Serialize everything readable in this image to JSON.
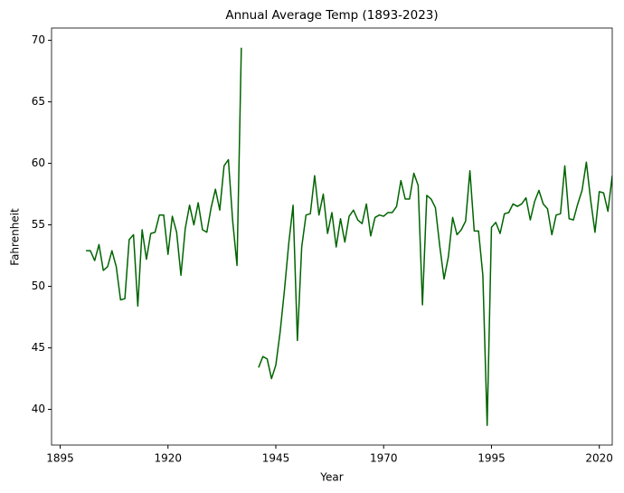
{
  "chart_data": {
    "type": "line",
    "title": "Annual Average Temp (1893-2023)",
    "x_label": "Year",
    "y_label": "Fahrenheit",
    "x": [
      1901,
      1902,
      1903,
      1904,
      1905,
      1906,
      1907,
      1908,
      1909,
      1910,
      1911,
      1912,
      1913,
      1914,
      1915,
      1916,
      1917,
      1918,
      1919,
      1920,
      1921,
      1922,
      1923,
      1924,
      1925,
      1926,
      1927,
      1928,
      1929,
      1930,
      1931,
      1932,
      1933,
      1934,
      1935,
      1936,
      1937,
      1938,
      1939,
      1940,
      1941,
      1942,
      1943,
      1944,
      1945,
      1946,
      1947,
      1948,
      1949,
      1950,
      1951,
      1952,
      1953,
      1954,
      1955,
      1956,
      1957,
      1958,
      1959,
      1960,
      1961,
      1962,
      1963,
      1964,
      1965,
      1966,
      1967,
      1968,
      1969,
      1970,
      1971,
      1972,
      1973,
      1974,
      1975,
      1976,
      1977,
      1978,
      1979,
      1980,
      1981,
      1982,
      1983,
      1984,
      1985,
      1986,
      1987,
      1988,
      1989,
      1990,
      1991,
      1992,
      1993,
      1994,
      1995,
      1996,
      1997,
      1998,
      1999,
      2000,
      2001,
      2002,
      2003,
      2004,
      2005,
      2006,
      2007,
      2008,
      2009,
      2010,
      2011,
      2012,
      2013,
      2014,
      2015,
      2016,
      2017,
      2018,
      2019,
      2020,
      2021,
      2022,
      2023
    ],
    "series": [
      {
        "name": "Temp",
        "color": "#006400",
        "values": [
          52.9,
          52.9,
          52.1,
          53.4,
          51.3,
          51.6,
          52.9,
          51.6,
          48.9,
          49.0,
          53.8,
          54.2,
          48.4,
          54.6,
          52.2,
          54.3,
          54.4,
          55.8,
          55.8,
          52.6,
          55.7,
          54.4,
          50.9,
          54.7,
          56.6,
          55.0,
          56.8,
          54.6,
          54.4,
          56.4,
          57.9,
          56.2,
          59.8,
          60.3,
          55.3,
          51.7,
          69.4,
          null,
          null,
          null,
          43.4,
          44.3,
          44.1,
          42.5,
          43.6,
          46.3,
          49.7,
          53.5,
          56.6,
          45.6,
          53.2,
          55.8,
          55.9,
          59.0,
          55.8,
          57.5,
          54.3,
          56.0,
          53.2,
          55.5,
          53.6,
          55.7,
          56.2,
          55.4,
          55.1,
          56.7,
          54.1,
          55.6,
          55.8,
          55.7,
          56.0,
          56.0,
          56.5,
          58.6,
          57.1,
          57.1,
          59.2,
          58.2,
          48.5,
          57.4,
          57.1,
          56.4,
          53.3,
          50.6,
          52.4,
          55.6,
          54.2,
          54.6,
          55.3,
          59.4,
          54.5,
          54.5,
          50.9,
          38.7,
          54.8,
          55.2,
          54.3,
          55.9,
          56.0,
          56.7,
          56.5,
          56.7,
          57.2,
          55.4,
          56.9,
          57.8,
          56.7,
          56.3,
          54.2,
          55.8,
          55.9,
          59.8,
          55.5,
          55.4,
          56.7,
          57.8,
          60.1,
          57.0,
          54.4,
          57.7,
          57.6,
          56.1,
          59.0
        ]
      }
    ],
    "xlim": [
      1893,
      2023
    ],
    "ylim": [
      37.1,
      71.0
    ],
    "xticks": [
      1895,
      1920,
      1945,
      1970,
      1995,
      2020
    ],
    "yticks": [
      40,
      45,
      50,
      55,
      60,
      65,
      70
    ]
  }
}
